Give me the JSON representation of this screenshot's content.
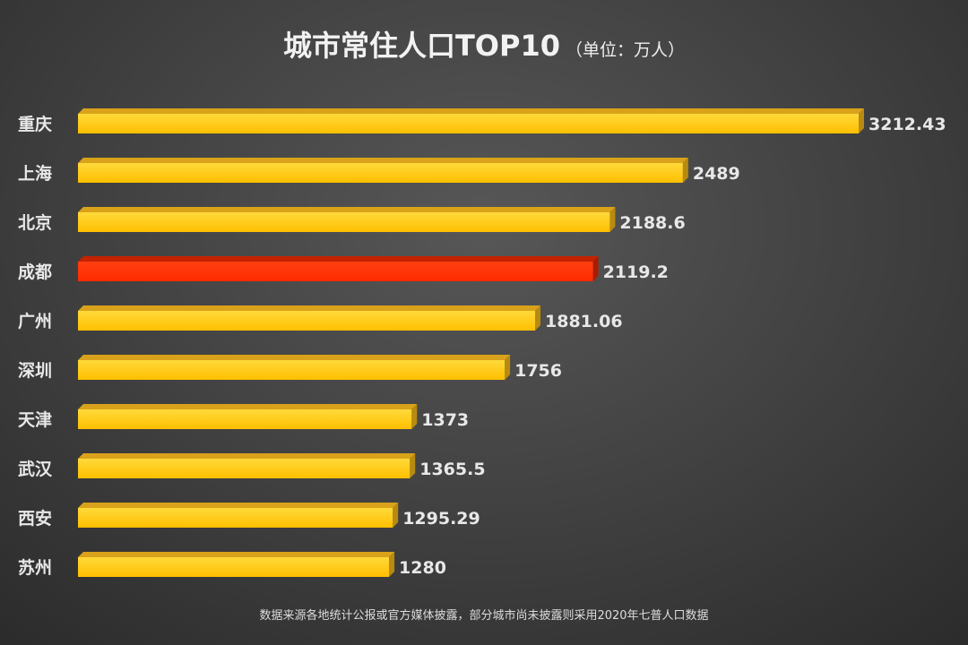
{
  "chart_data": {
    "type": "bar",
    "orientation": "horizontal",
    "style": "3d",
    "title": "城市常住人口TOP10",
    "subtitle": "（单位：万人）",
    "categories": [
      "重庆",
      "上海",
      "北京",
      "成都",
      "广州",
      "深圳",
      "天津",
      "武汉",
      "西安",
      "苏州"
    ],
    "values": [
      3212.43,
      2489,
      2188.6,
      2119.2,
      1881.06,
      1756,
      1373,
      1365.5,
      1295.29,
      1280
    ],
    "value_labels": [
      "3212.43",
      "2489",
      "2188.6",
      "2119.2",
      "1881.06",
      "1756",
      "1373",
      "1365.5",
      "1295.29",
      "1280"
    ],
    "highlight": "成都",
    "xlim": [
      0,
      3212.43
    ],
    "grid": false,
    "colors": {
      "bar": "#ffc400",
      "highlight": "#ff3300",
      "background": "#444444"
    },
    "footnote": "数据来源各地统计公报或官方媒体披露，部分城市尚未披露则采用2020年七普人口数据"
  }
}
